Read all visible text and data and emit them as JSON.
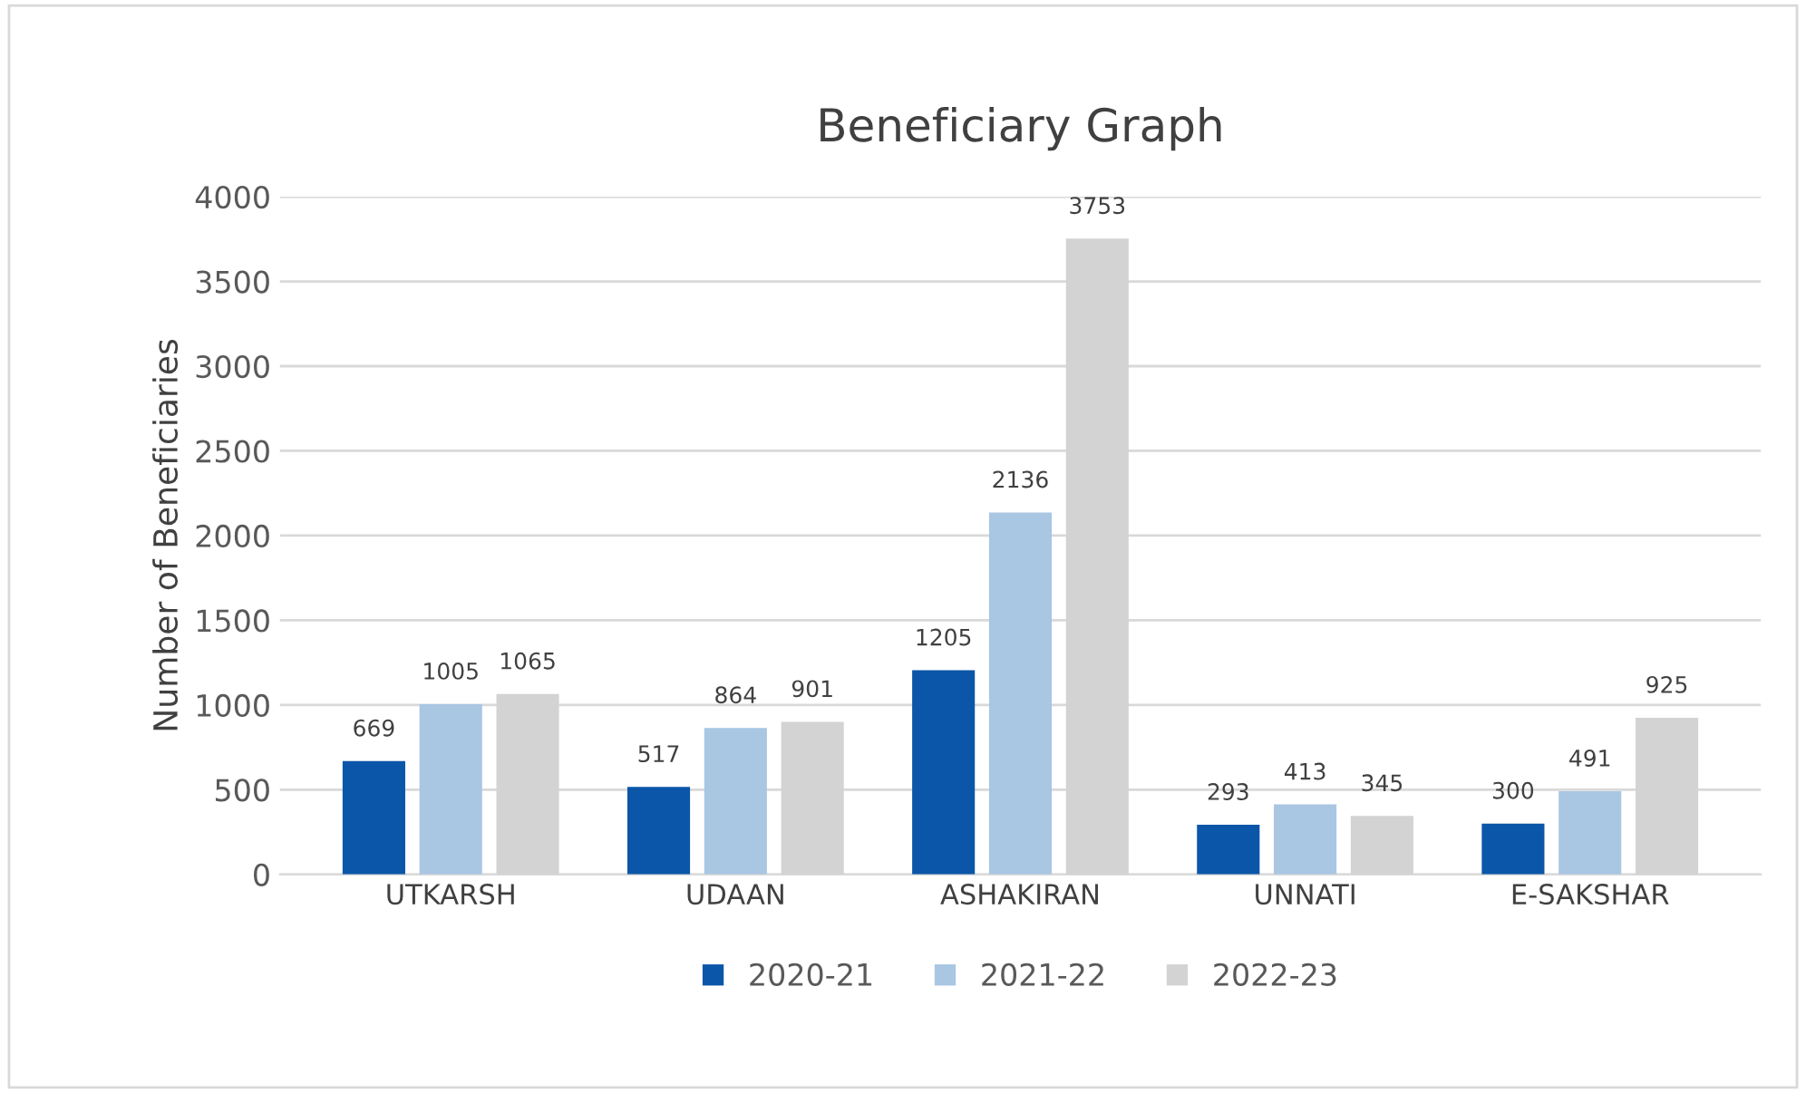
{
  "chart_data": {
    "type": "bar",
    "title": "Beneficiary Graph",
    "ylabel": "Number of Beneficiaries",
    "categories": [
      "UTKARSH",
      "UDAAN",
      "ASHAKIRAN",
      "UNNATI",
      "E-SAKSHAR"
    ],
    "series": [
      {
        "name": "2020-21",
        "color": "#0b56a8",
        "values": [
          669,
          517,
          1205,
          293,
          300
        ]
      },
      {
        "name": "2021-22",
        "color": "#a9c6e3",
        "values": [
          1005,
          864,
          2136,
          413,
          491
        ]
      },
      {
        "name": "2022-23",
        "color": "#d3d3d3",
        "values": [
          1065,
          901,
          3753,
          345,
          925
        ]
      }
    ],
    "ylim": [
      0,
      4000
    ],
    "yticks": [
      0,
      500,
      1000,
      1500,
      2000,
      2500,
      3000,
      3500,
      4000
    ],
    "grid": "y",
    "legend": "bottom",
    "data_labels": true
  }
}
